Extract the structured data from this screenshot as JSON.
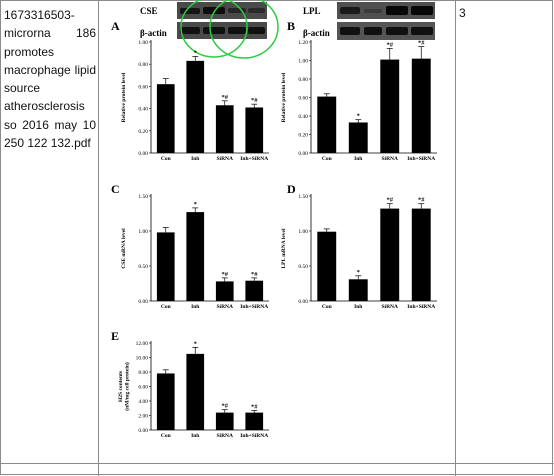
{
  "document": {
    "filename": "1673316503-microrna 186 promotes macrophage lipid source atherosclerosis so 2016 may 10 250 122 132.pdf",
    "column_number": "3"
  },
  "blots": {
    "A": {
      "protein": "CSE",
      "control": "β-actin"
    },
    "B": {
      "protein": "LPL",
      "control": "β-actin"
    }
  },
  "chart_data": [
    {
      "panel": "A",
      "type": "bar",
      "categories": [
        "Con",
        "Inh",
        "SiRNA",
        "Inh+SiRNA"
      ],
      "values": [
        0.62,
        0.83,
        0.43,
        0.41
      ],
      "errors": [
        0.05,
        0.04,
        0.04,
        0.03
      ],
      "annotations": [
        "",
        "*",
        "*#",
        "*#"
      ],
      "ylabel": "Relative protein level",
      "ylim": [
        0,
        1.0
      ],
      "yticks": [
        "0.00",
        "0.20",
        "0.40",
        "0.60",
        "0.80",
        "1.00"
      ]
    },
    {
      "panel": "B",
      "type": "bar",
      "categories": [
        "Con",
        "Inh",
        "SiRNA",
        "Inh+SiRNA"
      ],
      "values": [
        0.61,
        0.33,
        1.01,
        1.02
      ],
      "errors": [
        0.03,
        0.03,
        0.12,
        0.13
      ],
      "annotations": [
        "",
        "*",
        "*#",
        "*#"
      ],
      "ylabel": "Relative protein level",
      "ylim": [
        0,
        1.2
      ],
      "yticks": [
        "0.00",
        "0.20",
        "0.40",
        "0.60",
        "0.80",
        "1.00",
        "1.20"
      ]
    },
    {
      "panel": "C",
      "type": "bar",
      "categories": [
        "Con",
        "Inh",
        "SiRNA",
        "Inh+SiRNA"
      ],
      "values": [
        0.98,
        1.27,
        0.28,
        0.29
      ],
      "errors": [
        0.07,
        0.06,
        0.05,
        0.04
      ],
      "annotations": [
        "",
        "*",
        "*#",
        "*#"
      ],
      "ylabel": "CSE mRNA level",
      "ylim": [
        0,
        1.5
      ],
      "yticks": [
        "0.00",
        "0.50",
        "1.00",
        "1.50"
      ]
    },
    {
      "panel": "D",
      "type": "bar",
      "categories": [
        "Con",
        "Inh",
        "SiRNA",
        "Inh+SiRNA"
      ],
      "values": [
        0.99,
        0.31,
        1.32,
        1.32
      ],
      "errors": [
        0.04,
        0.05,
        0.07,
        0.07
      ],
      "annotations": [
        "",
        "*",
        "*#",
        "*#"
      ],
      "ylabel": "LPL mRNA level",
      "ylim": [
        0,
        1.5
      ],
      "yticks": [
        "0.00",
        "0.50",
        "1.00",
        "1.50"
      ]
    },
    {
      "panel": "E",
      "type": "bar",
      "categories": [
        "Con",
        "Inh",
        "SiRNA",
        "Inh+SiRNA"
      ],
      "values": [
        7.8,
        10.5,
        2.4,
        2.4
      ],
      "errors": [
        0.5,
        0.9,
        0.4,
        0.3
      ],
      "annotations": [
        "",
        "*",
        "*#",
        "*#"
      ],
      "ylabel": "H2S contents (nM/mg cell protein)",
      "ylim": [
        0,
        12
      ],
      "yticks": [
        "0.00",
        "2.00",
        "4.00",
        "6.00",
        "8.00",
        "10.00",
        "12.00"
      ]
    }
  ]
}
